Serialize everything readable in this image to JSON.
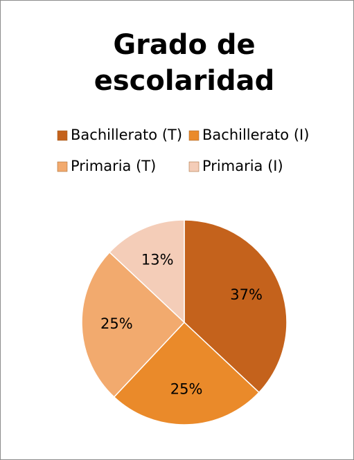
{
  "chart_data": {
    "type": "pie",
    "title": "Grado de escolaridad",
    "categories": [
      "Bachillerato (T)",
      "Bachillerato (I)",
      "Primaria (T)",
      "Primaria (I)"
    ],
    "values": [
      37,
      25,
      25,
      13
    ],
    "value_labels": [
      "37%",
      "25%",
      "25%",
      "13%"
    ],
    "colors": [
      "#c4621c",
      "#ea8a2a",
      "#f2aa6e",
      "#f4cdb8"
    ],
    "legend": "top"
  }
}
